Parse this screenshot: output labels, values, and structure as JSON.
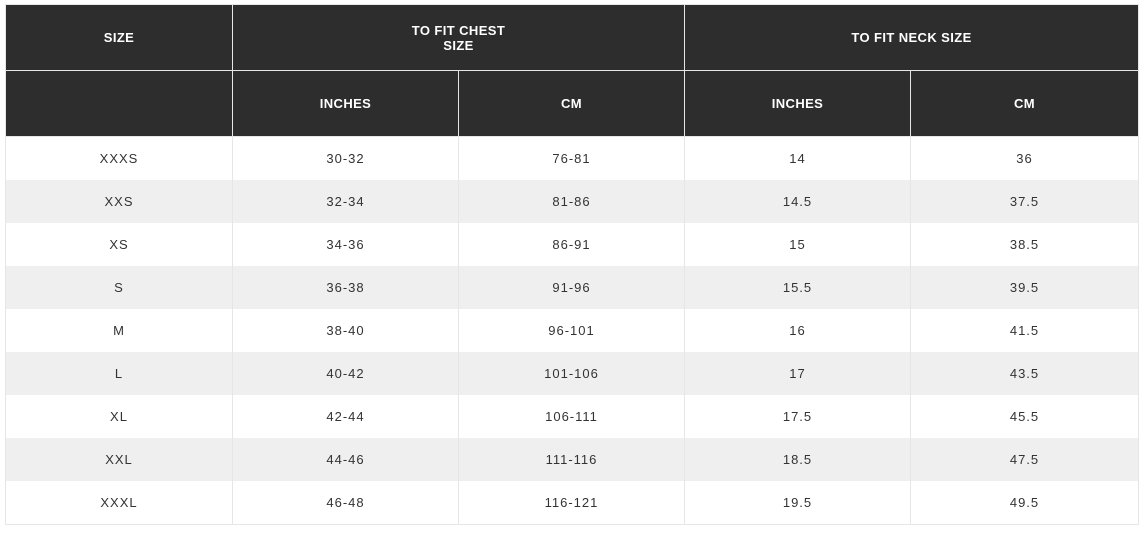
{
  "header": {
    "size": "SIZE",
    "chest_line1": "TO FIT CHEST",
    "chest_line2": "SIZE",
    "neck": "TO FIT NECK SIZE",
    "empty": "",
    "chest_inches": "INCHES",
    "chest_cm": "CM",
    "neck_inches": "INCHES",
    "neck_cm": "CM"
  },
  "rows": [
    {
      "size": "XXXS",
      "chest_in": "30-32",
      "chest_cm": "76-81",
      "neck_in": "14",
      "neck_cm": "36"
    },
    {
      "size": "XXS",
      "chest_in": "32-34",
      "chest_cm": "81-86",
      "neck_in": "14.5",
      "neck_cm": "37.5"
    },
    {
      "size": "XS",
      "chest_in": "34-36",
      "chest_cm": "86-91",
      "neck_in": "15",
      "neck_cm": "38.5"
    },
    {
      "size": "S",
      "chest_in": "36-38",
      "chest_cm": "91-96",
      "neck_in": "15.5",
      "neck_cm": "39.5"
    },
    {
      "size": "M",
      "chest_in": "38-40",
      "chest_cm": "96-101",
      "neck_in": "16",
      "neck_cm": "41.5"
    },
    {
      "size": "L",
      "chest_in": "40-42",
      "chest_cm": "101-106",
      "neck_in": "17",
      "neck_cm": "43.5"
    },
    {
      "size": "XL",
      "chest_in": "42-44",
      "chest_cm": "106-111",
      "neck_in": "17.5",
      "neck_cm": "45.5"
    },
    {
      "size": "XXL",
      "chest_in": "44-46",
      "chest_cm": "111-116",
      "neck_in": "18.5",
      "neck_cm": "47.5"
    },
    {
      "size": "XXXL",
      "chest_in": "46-48",
      "chest_cm": "116-121",
      "neck_in": "19.5",
      "neck_cm": "49.5"
    }
  ],
  "colors": {
    "header_bg": "#2d2d2d",
    "header_text": "#ffffff",
    "row_alt_bg": "#efefef",
    "cell_text": "#333333"
  }
}
